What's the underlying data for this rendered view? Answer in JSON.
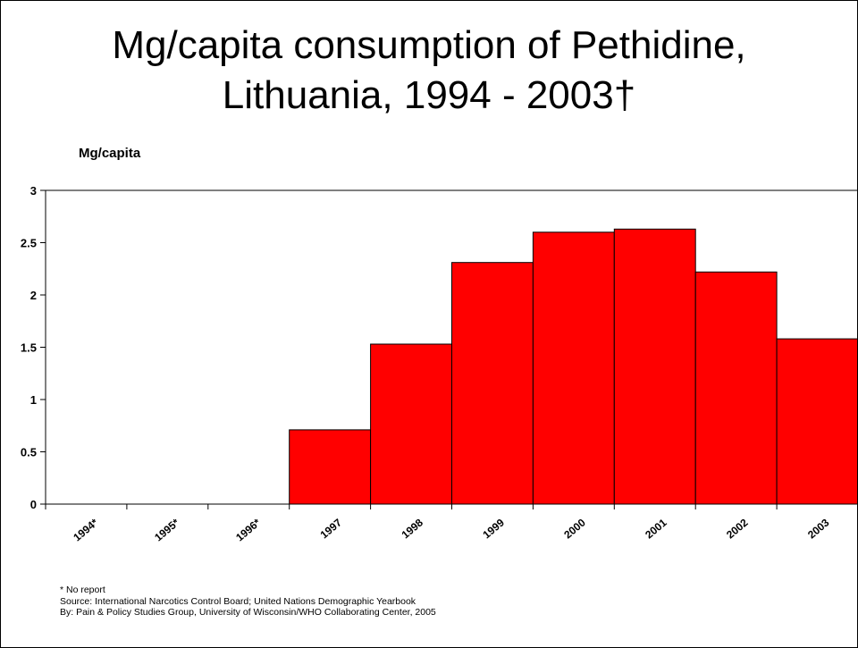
{
  "chart_data": {
    "type": "bar",
    "title": "Mg/capita consumption of Pethidine, Lithuania, 1994 - 2003†",
    "title_lines": [
      "Mg/capita consumption of Pethidine,",
      "Lithuania, 1994 - 2003†"
    ],
    "ylabel": "Mg/capita",
    "xlabel": "",
    "categories": [
      "1994*",
      "1995*",
      "1996*",
      "1997",
      "1998",
      "1999",
      "2000",
      "2001",
      "2002",
      "2003"
    ],
    "values": [
      0,
      0,
      0,
      0.71,
      1.53,
      2.31,
      2.6,
      2.63,
      2.22,
      1.58
    ],
    "ylim": [
      0,
      3
    ],
    "yticks": [
      0,
      0.5,
      1,
      1.5,
      2,
      2.5,
      3
    ],
    "ytick_labels": [
      "0",
      "0.5",
      "1",
      "1.5",
      "2",
      "2.5",
      "3"
    ],
    "grid": false,
    "legend": "none",
    "bar_color": "#ff0000",
    "edge_color": "#000000"
  },
  "notes": {
    "no_report": "* No report",
    "source": "Source: International Narcotics Control Board; United Nations Demographic Yearbook",
    "by": "By: Pain & Policy Studies Group, University of Wisconsin/WHO Collaborating Center,  2005"
  }
}
